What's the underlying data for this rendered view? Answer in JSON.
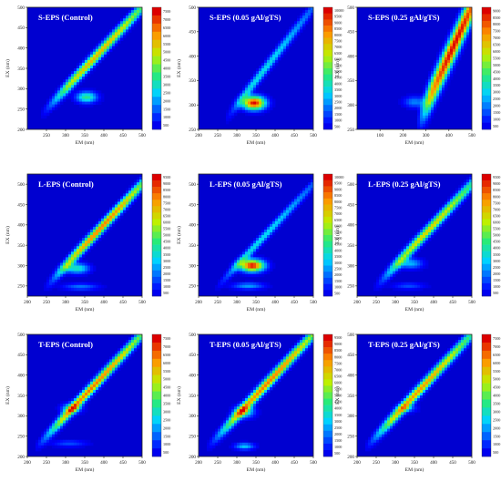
{
  "chart_data": [
    {
      "type": "heatmap",
      "title": "S-EPS (Control)",
      "xlabel": "EM (nm)",
      "ylabel": "EX (nm)",
      "xlim": [
        200,
        500
      ],
      "ylim": [
        200,
        500
      ],
      "xticks": [
        "250",
        "300",
        "350",
        "400",
        "450",
        "500"
      ],
      "yticks": [
        "200",
        "250",
        "300",
        "350",
        "400",
        "450",
        "500"
      ],
      "colorbar": {
        "min": 0,
        "max": 7500,
        "ticks": [
          "7500",
          "7000",
          "6500",
          "6000",
          "5500",
          "5000",
          "4500",
          "4000",
          "3500",
          "3000",
          "2500",
          "2000",
          "1500",
          "1000",
          "500"
        ]
      },
      "features": {
        "diag_amp": 0.75,
        "diag_width": 0.42,
        "diag_start": 0.25,
        "diag_end": 1.0,
        "diag_peak": 0.62,
        "diag_sigma": 0.22,
        "spots": [
          {
            "x": 355,
            "y": 279,
            "amp": 0.45,
            "rx": 26,
            "ry": 13
          }
        ]
      }
    },
    {
      "type": "heatmap",
      "title": "S-EPS (0.05 gAl/gTS)",
      "xlabel": "EM (nm)",
      "ylabel": "EX (nm)",
      "xlim": [
        200,
        500
      ],
      "ylim": [
        250,
        500
      ],
      "xticks": [
        "200",
        "250",
        "300",
        "350",
        "400",
        "450",
        "500"
      ],
      "yticks": [
        "250",
        "300",
        "350",
        "400",
        "450",
        "500"
      ],
      "colorbar": {
        "min": 0,
        "max": 10000,
        "ticks": [
          "10000",
          "9500",
          "9000",
          "8500",
          "8000",
          "7500",
          "7000",
          "6500",
          "6000",
          "5500",
          "5000",
          "4500",
          "4000",
          "3500",
          "3000",
          "2500",
          "2000",
          "1500",
          "1000",
          "500"
        ]
      },
      "features": {
        "diag_amp": 0.35,
        "diag_width": 0.35,
        "diag_start": 0.2,
        "diag_end": 1.0,
        "diag_peak": 0.45,
        "diag_sigma": 0.3,
        "spots": [
          {
            "x": 345,
            "y": 304,
            "amp": 1.0,
            "rx": 28,
            "ry": 13
          }
        ]
      }
    },
    {
      "type": "heatmap",
      "title": "S-EPS (0.25 gAl/gTS)",
      "xlabel": "EM (nm)",
      "ylabel": "EX (nm)",
      "xlim": [
        0,
        500
      ],
      "ylim": [
        250,
        500
      ],
      "xticks": [
        "100",
        "200",
        "300",
        "400",
        "500"
      ],
      "yticks": [
        "250",
        "300",
        "350",
        "400",
        "450",
        "500"
      ],
      "colorbar": {
        "min": 0,
        "max": 9000,
        "ticks": [
          "9000",
          "8500",
          "8000",
          "7500",
          "7000",
          "6500",
          "6000",
          "5500",
          "5000",
          "4500",
          "4000",
          "3500",
          "3000",
          "2500",
          "2000",
          "1500",
          "1000",
          "500"
        ]
      },
      "features": {
        "diag_amp": 1.0,
        "diag_width": 0.5,
        "diag_start": 0.18,
        "diag_end": 1.0,
        "diag_peak": 0.7,
        "diag_sigma": 0.45,
        "spots": [
          {
            "x": 250,
            "y": 306,
            "amp": 0.22,
            "rx": 45,
            "ry": 11
          }
        ]
      }
    },
    {
      "type": "heatmap",
      "title": "L-EPS (Control)",
      "xlabel": "EM (nm)",
      "ylabel": "EX (nm)",
      "xlim": [
        200,
        500
      ],
      "ylim": [
        225,
        525
      ],
      "xticks": [
        "200",
        "250",
        "300",
        "350",
        "400",
        "450",
        "500"
      ],
      "yticks": [
        "250",
        "300",
        "350",
        "400",
        "450",
        "500"
      ],
      "colorbar": {
        "min": 0,
        "max": 9500,
        "ticks": [
          "9500",
          "9000",
          "8500",
          "8000",
          "7500",
          "7000",
          "6500",
          "6000",
          "5500",
          "5000",
          "4500",
          "4000",
          "3500",
          "3000",
          "2500",
          "2000",
          "1500",
          "1000",
          "500"
        ]
      },
      "features": {
        "diag_amp": 0.85,
        "diag_width": 0.4,
        "diag_start": 0.2,
        "diag_end": 1.0,
        "diag_peak": 0.62,
        "diag_sigma": 0.2,
        "spots": [
          {
            "x": 330,
            "y": 293,
            "amp": 0.4,
            "rx": 30,
            "ry": 12
          },
          {
            "x": 340,
            "y": 248,
            "amp": 0.2,
            "rx": 45,
            "ry": 8
          }
        ]
      }
    },
    {
      "type": "heatmap",
      "title": "L-EPS (0.05 gAl/gTS)",
      "xlabel": "EM (nm)",
      "ylabel": "EX (nm)",
      "xlim": [
        200,
        500
      ],
      "ylim": [
        225,
        525
      ],
      "xticks": [
        "200",
        "250",
        "300",
        "350",
        "400",
        "450",
        "500"
      ],
      "yticks": [
        "250",
        "300",
        "350",
        "400",
        "450",
        "500"
      ],
      "colorbar": {
        "min": 0,
        "max": 10000,
        "ticks": [
          "10000",
          "9500",
          "9000",
          "8500",
          "8000",
          "7500",
          "7000",
          "6500",
          "6000",
          "5500",
          "5000",
          "4500",
          "4000",
          "3500",
          "3000",
          "2500",
          "2000",
          "1500",
          "1000",
          "500"
        ]
      },
      "features": {
        "diag_amp": 0.35,
        "diag_width": 0.35,
        "diag_start": 0.2,
        "diag_end": 1.0,
        "diag_peak": 0.45,
        "diag_sigma": 0.3,
        "spots": [
          {
            "x": 340,
            "y": 300,
            "amp": 1.0,
            "rx": 30,
            "ry": 14
          },
          {
            "x": 330,
            "y": 250,
            "amp": 0.25,
            "rx": 40,
            "ry": 8
          }
        ]
      }
    },
    {
      "type": "heatmap",
      "title": "L-EPS (0.25 gAl/gTS)",
      "xlabel": "EM (nm)",
      "ylabel": "EX (nm)",
      "xlim": [
        200,
        500
      ],
      "ylim": [
        225,
        525
      ],
      "xticks": [
        "200",
        "250",
        "300",
        "350",
        "400",
        "450",
        "500"
      ],
      "yticks": [
        "250",
        "300",
        "350",
        "400",
        "450",
        "500"
      ],
      "colorbar": {
        "min": 0,
        "max": 9500,
        "ticks": [
          "9500",
          "9000",
          "8500",
          "8000",
          "7500",
          "7000",
          "6500",
          "6000",
          "5500",
          "5000",
          "4500",
          "4000",
          "3500",
          "3000",
          "2500",
          "2000",
          "1500",
          "1000",
          "500"
        ]
      },
      "features": {
        "diag_amp": 0.7,
        "diag_width": 0.42,
        "diag_start": 0.2,
        "diag_end": 1.0,
        "diag_peak": 0.6,
        "diag_sigma": 0.22,
        "spots": [
          {
            "x": 340,
            "y": 305,
            "amp": 0.28,
            "rx": 30,
            "ry": 12
          },
          {
            "x": 335,
            "y": 250,
            "amp": 0.15,
            "rx": 40,
            "ry": 8
          }
        ]
      }
    },
    {
      "type": "heatmap",
      "title": "T-EPS (Control)",
      "xlabel": "EM (nm)",
      "ylabel": "EX (nm)",
      "xlim": [
        200,
        500
      ],
      "ylim": [
        200,
        500
      ],
      "xticks": [
        "200",
        "250",
        "300",
        "350",
        "400",
        "450",
        "500"
      ],
      "yticks": [
        "200",
        "250",
        "300",
        "350",
        "400",
        "450",
        "500"
      ],
      "colorbar": {
        "min": 0,
        "max": 7500,
        "ticks": [
          "7500",
          "7000",
          "6500",
          "6000",
          "5500",
          "5000",
          "4500",
          "4000",
          "3500",
          "3000",
          "2500",
          "2000",
          "1500",
          "1000",
          "500"
        ]
      },
      "features": {
        "diag_amp": 0.85,
        "diag_width": 0.4,
        "diag_start": 0.2,
        "diag_end": 1.0,
        "diag_peak": 0.58,
        "diag_sigma": 0.22,
        "spots": [
          {
            "x": 315,
            "y": 318,
            "amp": 0.32,
            "rx": 25,
            "ry": 12
          },
          {
            "x": 310,
            "y": 232,
            "amp": 0.15,
            "rx": 45,
            "ry": 8
          }
        ]
      }
    },
    {
      "type": "heatmap",
      "title": "T-EPS (0.05 gAl/gTS)",
      "xlabel": "EM (nm)",
      "ylabel": "EX (nm)",
      "xlim": [
        200,
        500
      ],
      "ylim": [
        200,
        500
      ],
      "xticks": [
        "200",
        "250",
        "300",
        "350",
        "400",
        "450",
        "500"
      ],
      "yticks": [
        "200",
        "250",
        "300",
        "350",
        "400",
        "450",
        "500"
      ],
      "colorbar": {
        "min": 0,
        "max": 9500,
        "ticks": [
          "9500",
          "9000",
          "8500",
          "8000",
          "7500",
          "7000",
          "6500",
          "6000",
          "5500",
          "5000",
          "4500",
          "4000",
          "3500",
          "3000",
          "2500",
          "2000",
          "1500",
          "1000",
          "500"
        ]
      },
      "features": {
        "diag_amp": 0.85,
        "diag_width": 0.42,
        "diag_start": 0.2,
        "diag_end": 1.0,
        "diag_peak": 0.62,
        "diag_sigma": 0.22,
        "spots": [
          {
            "x": 320,
            "y": 310,
            "amp": 0.4,
            "rx": 25,
            "ry": 14
          },
          {
            "x": 320,
            "y": 225,
            "amp": 0.3,
            "rx": 25,
            "ry": 8
          }
        ]
      }
    },
    {
      "type": "heatmap",
      "title": "T-EPS (0.25 gAl/gTS)",
      "xlabel": "EM (nm)",
      "ylabel": "EX (nm)",
      "xlim": [
        200,
        500
      ],
      "ylim": [
        200,
        500
      ],
      "xticks": [
        "200",
        "250",
        "300",
        "350",
        "400",
        "450",
        "500"
      ],
      "yticks": [
        "200",
        "250",
        "300",
        "350",
        "400",
        "450",
        "500"
      ],
      "colorbar": {
        "min": 0,
        "max": 7500,
        "ticks": [
          "7500",
          "7000",
          "6500",
          "6000",
          "5500",
          "5000",
          "4500",
          "4000",
          "3500",
          "3000",
          "2500",
          "2000",
          "1500",
          "1000",
          "500"
        ]
      },
      "features": {
        "diag_amp": 0.8,
        "diag_width": 0.42,
        "diag_start": 0.2,
        "diag_end": 1.0,
        "diag_peak": 0.55,
        "diag_sigma": 0.22,
        "spots": [
          {
            "x": 330,
            "y": 318,
            "amp": 0.2,
            "rx": 25,
            "ry": 10
          }
        ]
      }
    }
  ]
}
